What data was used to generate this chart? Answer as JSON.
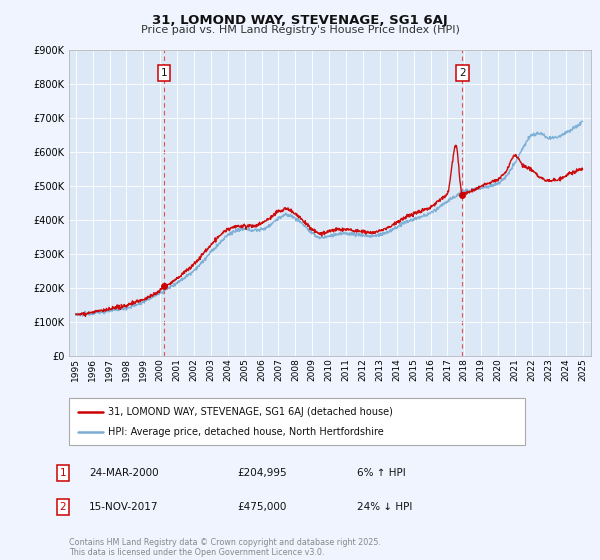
{
  "title": "31, LOMOND WAY, STEVENAGE, SG1 6AJ",
  "subtitle": "Price paid vs. HM Land Registry's House Price Index (HPI)",
  "red_label": "31, LOMOND WAY, STEVENAGE, SG1 6AJ (detached house)",
  "blue_label": "HPI: Average price, detached house, North Hertfordshire",
  "annotation1_date": "24-MAR-2000",
  "annotation1_price": "£204,995",
  "annotation1_hpi": "6% ↑ HPI",
  "annotation2_date": "15-NOV-2017",
  "annotation2_price": "£475,000",
  "annotation2_hpi": "24% ↓ HPI",
  "footer": "Contains HM Land Registry data © Crown copyright and database right 2025.\nThis data is licensed under the Open Government Licence v3.0.",
  "red_color": "#cc0000",
  "blue_color": "#7aadd4",
  "vline_color": "#dd4444",
  "background_color": "#f0f4ff",
  "plot_bg_color": "#dce8f5",
  "grid_color": "#ffffff",
  "ylim_min": 0,
  "ylim_max": 900000,
  "xlim_min": 1994.6,
  "xlim_max": 2025.5,
  "sale1_year": 2000.23,
  "sale1_value": 204995,
  "sale2_year": 2017.88,
  "sale2_value": 475000,
  "hpi_years": [
    1995.0,
    1995.5,
    1996.0,
    1996.5,
    1997.0,
    1997.5,
    1998.0,
    1998.5,
    1999.0,
    1999.5,
    2000.0,
    2000.5,
    2001.0,
    2001.5,
    2002.0,
    2002.5,
    2003.0,
    2003.5,
    2004.0,
    2004.5,
    2005.0,
    2005.5,
    2006.0,
    2006.5,
    2007.0,
    2007.5,
    2008.0,
    2008.5,
    2009.0,
    2009.5,
    2010.0,
    2010.5,
    2011.0,
    2011.5,
    2012.0,
    2012.5,
    2013.0,
    2013.5,
    2014.0,
    2014.5,
    2015.0,
    2015.5,
    2016.0,
    2016.5,
    2017.0,
    2017.5,
    2018.0,
    2018.5,
    2019.0,
    2019.5,
    2020.0,
    2020.5,
    2021.0,
    2021.5,
    2022.0,
    2022.5,
    2023.0,
    2023.5,
    2024.0,
    2024.5,
    2025.0
  ],
  "hpi_values": [
    120000,
    122000,
    126000,
    128000,
    132000,
    136000,
    140000,
    148000,
    158000,
    172000,
    185000,
    200000,
    215000,
    232000,
    252000,
    276000,
    305000,
    330000,
    355000,
    368000,
    372000,
    370000,
    372000,
    385000,
    405000,
    415000,
    405000,
    385000,
    360000,
    348000,
    352000,
    358000,
    360000,
    358000,
    355000,
    352000,
    356000,
    365000,
    378000,
    392000,
    402000,
    410000,
    420000,
    438000,
    455000,
    470000,
    485000,
    490000,
    495000,
    500000,
    508000,
    530000,
    570000,
    615000,
    650000,
    655000,
    640000,
    645000,
    658000,
    672000,
    690000
  ],
  "red_years": [
    1995.0,
    1995.5,
    1996.0,
    1996.5,
    1997.0,
    1997.5,
    1998.0,
    1998.5,
    1999.0,
    1999.5,
    2000.0,
    2000.23,
    2000.5,
    2001.0,
    2001.5,
    2002.0,
    2002.5,
    2003.0,
    2003.5,
    2004.0,
    2004.5,
    2005.0,
    2005.5,
    2006.0,
    2006.5,
    2007.0,
    2007.5,
    2008.0,
    2008.5,
    2009.0,
    2009.5,
    2010.0,
    2010.5,
    2011.0,
    2011.5,
    2012.0,
    2012.5,
    2013.0,
    2013.5,
    2014.0,
    2014.5,
    2015.0,
    2015.5,
    2016.0,
    2016.5,
    2017.0,
    2017.5,
    2017.88,
    2018.0,
    2018.5,
    2019.0,
    2019.5,
    2020.0,
    2020.5,
    2021.0,
    2021.5,
    2022.0,
    2022.5,
    2023.0,
    2023.5,
    2024.0,
    2024.5,
    2025.0
  ],
  "red_values": [
    122000,
    124000,
    128000,
    132000,
    136000,
    142000,
    148000,
    158000,
    165000,
    178000,
    192000,
    204995,
    210000,
    228000,
    248000,
    270000,
    298000,
    326000,
    352000,
    372000,
    380000,
    382000,
    382000,
    390000,
    406000,
    425000,
    432000,
    418000,
    396000,
    372000,
    360000,
    366000,
    372000,
    372000,
    368000,
    365000,
    362000,
    368000,
    378000,
    392000,
    408000,
    418000,
    428000,
    438000,
    458000,
    478000,
    620000,
    475000,
    478000,
    486000,
    500000,
    510000,
    520000,
    545000,
    590000,
    560000,
    548000,
    525000,
    515000,
    520000,
    530000,
    542000,
    548000
  ]
}
